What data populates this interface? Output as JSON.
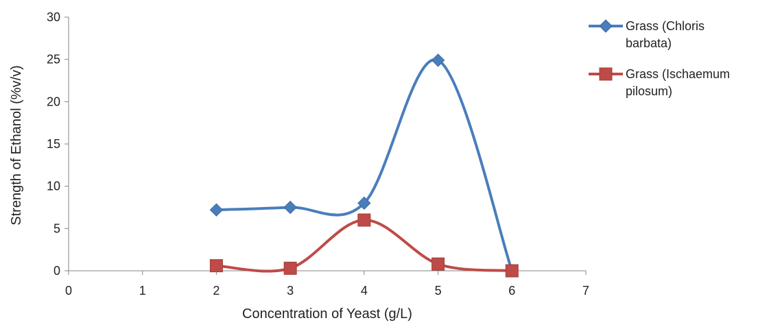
{
  "chart_data": {
    "type": "line",
    "title": "",
    "xlabel": "Concentration of Yeast (g/L)",
    "ylabel": "Strength of Ethanol (%v/v)",
    "xlim": [
      0,
      7
    ],
    "ylim": [
      0,
      30
    ],
    "xticks": [
      0,
      1,
      2,
      3,
      4,
      5,
      6,
      7
    ],
    "yticks": [
      0,
      5,
      10,
      15,
      20,
      25,
      30
    ],
    "grid": false,
    "smooth": true,
    "legend_position": "top-right",
    "series": [
      {
        "name": "Grass (Chloris barbata)",
        "legend_lines": [
          "Grass (Chloris",
          "barbata)"
        ],
        "color": "#4a7ebb",
        "marker": "diamond",
        "x": [
          2,
          3,
          4,
          5,
          6
        ],
        "y": [
          7.2,
          7.5,
          8.0,
          24.9,
          0
        ]
      },
      {
        "name": "Grass (Ischaemum pilosum)",
        "legend_lines": [
          "Grass (Ischaemum",
          "pilosum)"
        ],
        "color": "#be4b48",
        "marker": "square",
        "x": [
          2,
          3,
          4,
          5,
          6
        ],
        "y": [
          0.6,
          0.3,
          6.0,
          0.8,
          0
        ]
      }
    ]
  }
}
